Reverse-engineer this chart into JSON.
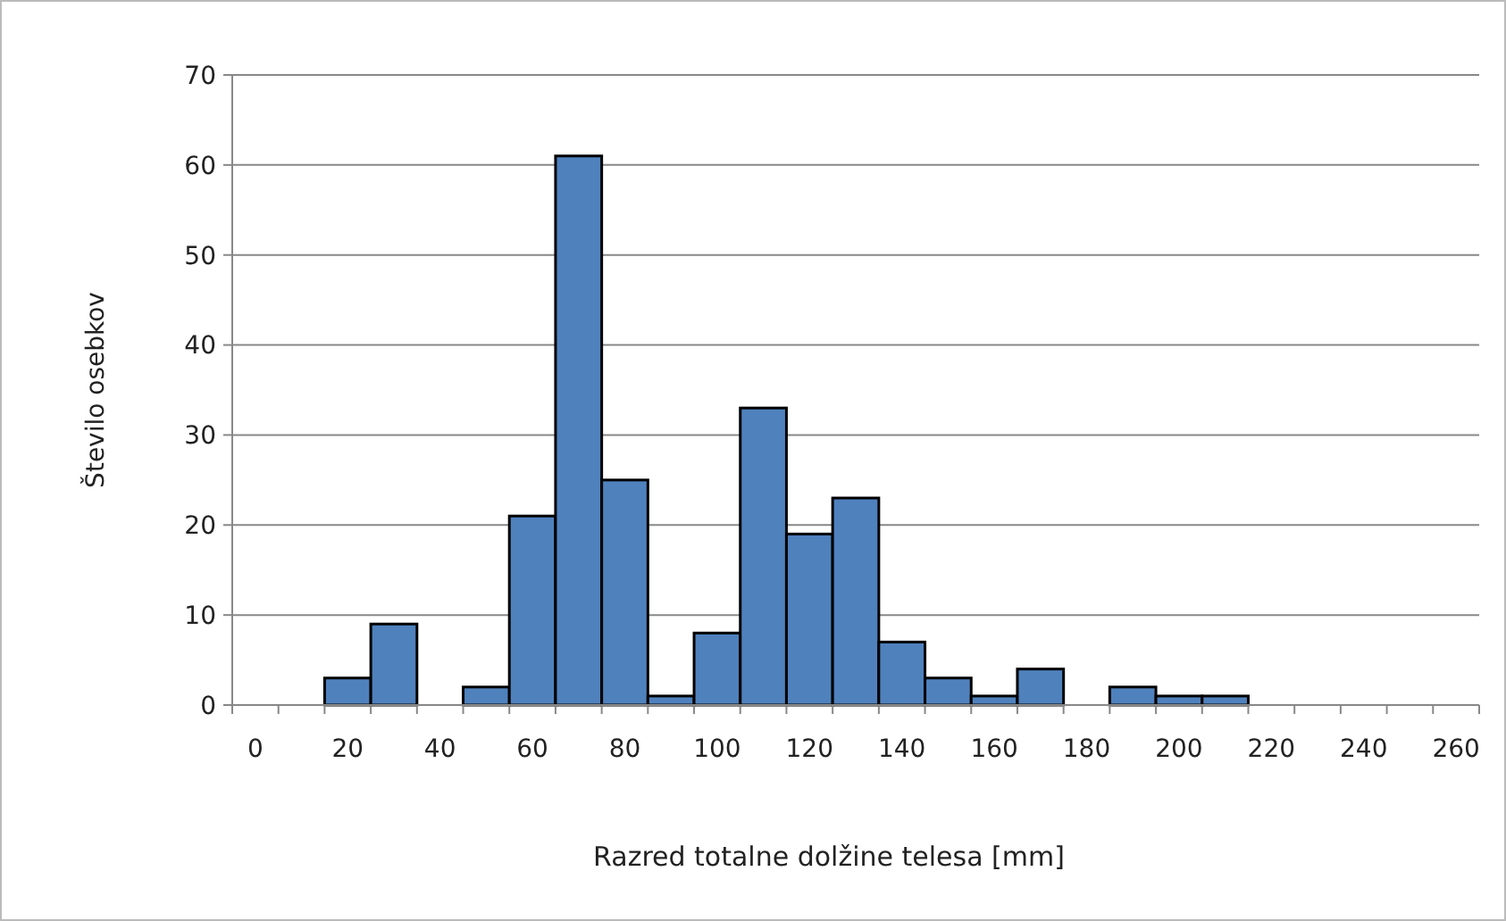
{
  "chart_data": {
    "type": "bar",
    "xlabel": "Razred totalne dolžine telesa [mm]",
    "ylabel": "Število osebkov",
    "categories": [
      "0",
      null,
      "20",
      null,
      "40",
      null,
      "60",
      null,
      "80",
      null,
      "100",
      null,
      "120",
      null,
      "140",
      null,
      "160",
      null,
      "180",
      null,
      "200",
      null,
      "220",
      null,
      "240",
      null,
      "260"
    ],
    "values": [
      0,
      0,
      3,
      9,
      0,
      2,
      21,
      61,
      25,
      1,
      8,
      33,
      19,
      23,
      7,
      3,
      1,
      4,
      0,
      2,
      1,
      1,
      0,
      0,
      0,
      0,
      0
    ],
    "color": "#4f81bd",
    "ylim": [
      0,
      70
    ],
    "yticks": [
      0,
      10,
      20,
      30,
      40,
      50,
      60,
      70
    ],
    "grid": "y"
  }
}
